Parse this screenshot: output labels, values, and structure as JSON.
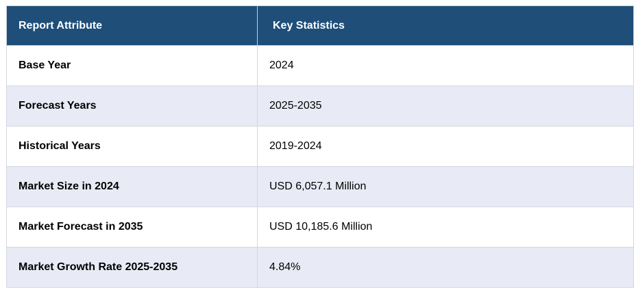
{
  "table": {
    "headers": [
      "Report Attribute",
      "Key Statistics"
    ],
    "rows": [
      {
        "attribute": "Base Year",
        "value": "2024"
      },
      {
        "attribute": "Forecast Years",
        "value": "2025-2035"
      },
      {
        "attribute": "Historical Years",
        "value": "2019-2024"
      },
      {
        "attribute": "Market Size in 2024",
        "value": "USD 6,057.1 Million"
      },
      {
        "attribute": "Market Forecast in 2035",
        "value": "USD 10,185.6 Million"
      },
      {
        "attribute": "Market Growth Rate 2025-2035",
        "value": "4.84%"
      }
    ]
  },
  "colors": {
    "header_bg": "#1f4e79",
    "header_text": "#ffffff",
    "row_alt_bg": "#e8eaf5",
    "row_bg": "#ffffff"
  }
}
